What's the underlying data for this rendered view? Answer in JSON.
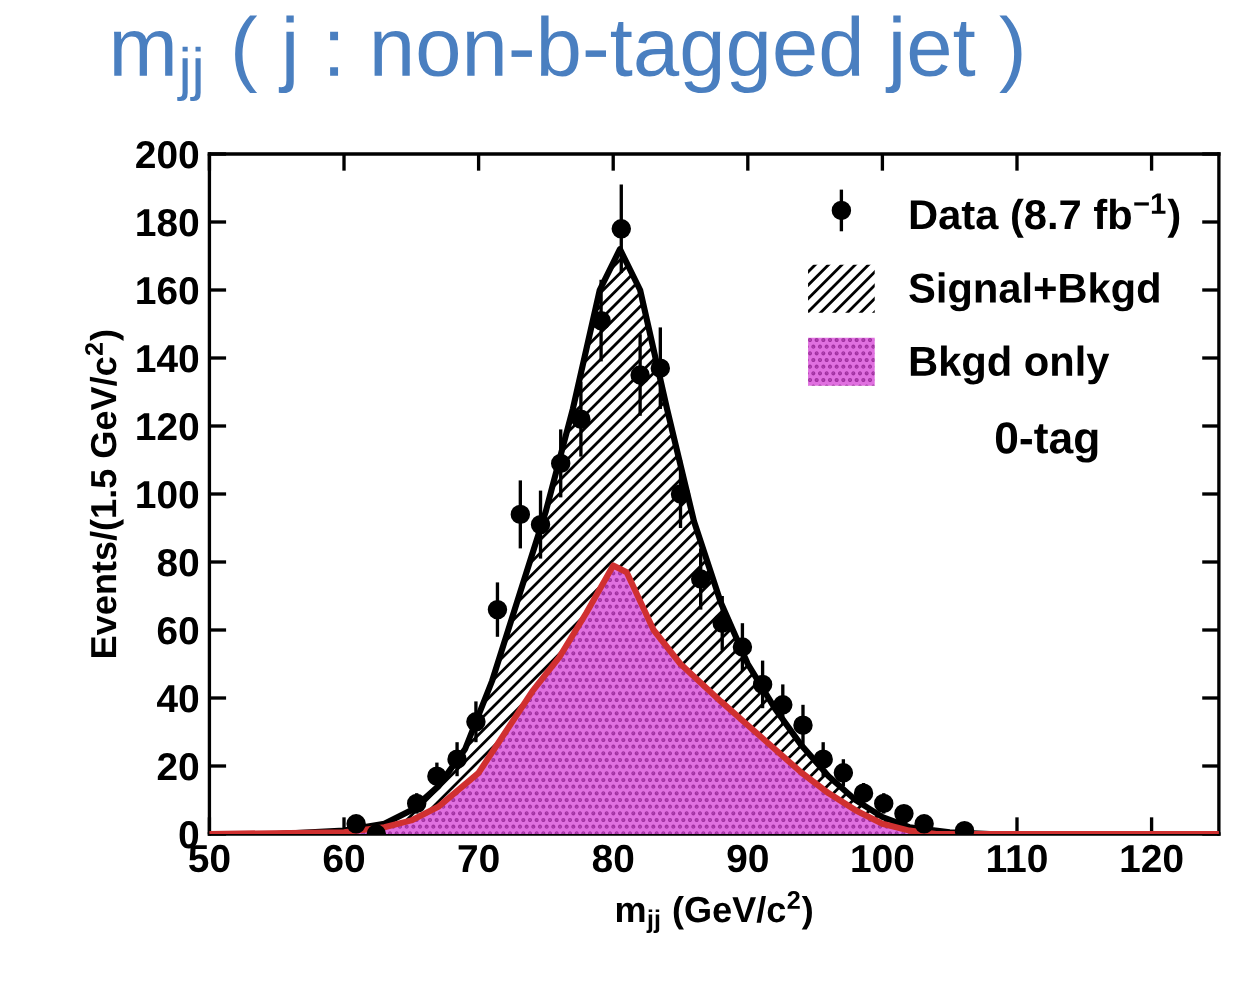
{
  "chart_data": {
    "type": "area",
    "title": "m$_{jj}$ ( j : non-b-tagged jet )",
    "xlabel": "m$_{jj}$ (GeV/c$^{2}$)",
    "ylabel": "Events/(1.5 GeV/c$^{2}$)",
    "xlim": [
      50,
      125
    ],
    "xticks": [
      50,
      60,
      70,
      80,
      90,
      100,
      110,
      120
    ],
    "ylim": [
      0,
      200
    ],
    "yticks": [
      0,
      20,
      40,
      60,
      80,
      100,
      120,
      140,
      160,
      180,
      200
    ],
    "grid": false,
    "legend": "top right",
    "annotations": [
      "0-tag"
    ],
    "series": [
      {
        "name": "Signal+Bkgd",
        "color": "#000000",
        "x": [
          50,
          55,
          60,
          63,
          65,
          67,
          69,
          71,
          73,
          75,
          77,
          79,
          80.5,
          82,
          84,
          86,
          88,
          90,
          92,
          94,
          96,
          98,
          100,
          102,
          105,
          108,
          125
        ],
        "values": [
          0,
          0,
          1,
          3,
          7,
          14,
          25,
          45,
          70,
          95,
          125,
          160,
          172,
          160,
          125,
          92,
          68,
          50,
          37,
          26,
          17,
          10,
          5,
          2,
          0.5,
          0,
          0
        ]
      },
      {
        "name": "Bkgd only",
        "color": "#e070e0",
        "x": [
          50,
          60,
          63,
          65,
          67,
          70,
          72,
          74,
          76,
          78,
          80,
          81,
          83,
          85,
          88,
          90,
          92,
          94,
          96,
          98,
          100,
          102,
          104,
          125
        ],
        "values": [
          0,
          0.5,
          2,
          4,
          8,
          18,
          30,
          42,
          52,
          65,
          79,
          77,
          60,
          50,
          39,
          32,
          25,
          18,
          12,
          7,
          3,
          1,
          0,
          0
        ]
      },
      {
        "name": "Data (8.7 fb$^{−1}$)",
        "type": "scatter",
        "color": "#000000",
        "marker": "circle",
        "x": [
          60.9,
          62.4,
          65.4,
          66.9,
          68.4,
          69.8,
          71.4,
          73.1,
          74.6,
          76.1,
          77.6,
          79.1,
          80.6,
          82.0,
          83.5,
          85.0,
          86.5,
          88.1,
          89.6,
          91.1,
          92.6,
          94.1,
          95.6,
          97.1,
          98.6,
          100.1,
          101.6,
          103.1,
          106.1
        ],
        "values": [
          3,
          0,
          9,
          17,
          22,
          33,
          66,
          94,
          91,
          109,
          122,
          151,
          178,
          135,
          137,
          100,
          75,
          62,
          55,
          44,
          38,
          32,
          22,
          18,
          12,
          9,
          6,
          3,
          1
        ],
        "errors": [
          2,
          1,
          3,
          4,
          5,
          6,
          8,
          10,
          10,
          10,
          11,
          12,
          13,
          12,
          12,
          10,
          9,
          8,
          7,
          7,
          6,
          6,
          5,
          4,
          3,
          3,
          2,
          2,
          1
        ]
      }
    ]
  }
}
